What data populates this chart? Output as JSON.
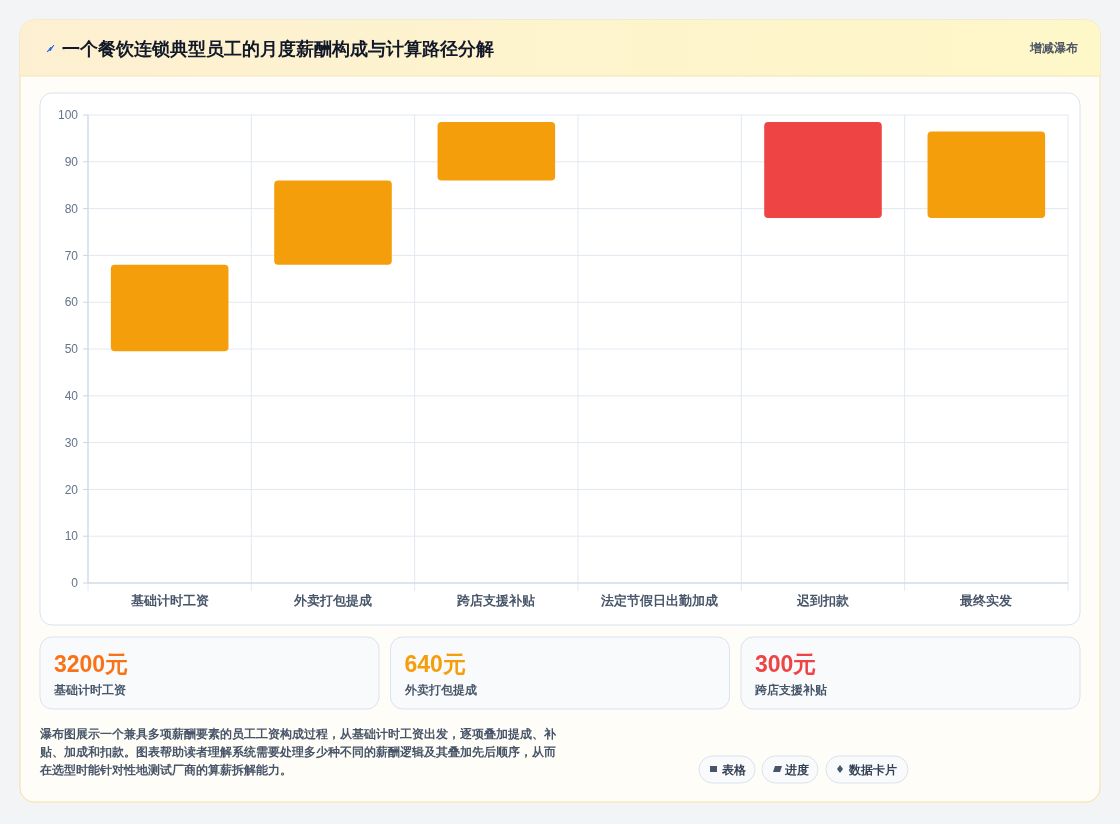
{
  "chart_data": {
    "type": "bar",
    "title": "一个餐饮连锁典型员工的月度薪酬构成与计算路径分解",
    "subtitle": "增减瀑布",
    "categories": [
      "基础计时工资",
      "外卖打包提成",
      "跨店支援补贴",
      "法定节假日出勤加成",
      "迟到扣款",
      "最终实发"
    ],
    "values": [
      18.5,
      18,
      12.5,
      null,
      20.5,
      18.5
    ],
    "base": [
      49.5,
      68,
      86,
      null,
      78,
      78
    ],
    "colors": [
      "#f59e0b",
      "#f59e0b",
      "#f59e0b",
      null,
      "#ef4444",
      "#f59e0b"
    ],
    "ylim": [
      0,
      100
    ],
    "yticks": [
      0,
      10,
      20,
      30,
      40,
      50,
      60,
      70,
      80,
      90,
      100
    ],
    "grid": true,
    "annotations": [
      "3200元",
      "基础计时工资",
      "640元",
      "外卖打包提成",
      "300元",
      "跨店支援补贴",
      "瀑布图展示一个兼具多项薪酬要素的员工工资构成过程，从基础计时工资出发，逐项叠加提成、补贴、加成和扣款。图表帮助读者理解系统需要处理多少种不同的薪酬逻辑及其叠加先后顺序，从而在选型时能针对性地测试厂商的算薪拆解能力。",
      "表格",
      "进度",
      "数据卡片"
    ]
  }
}
